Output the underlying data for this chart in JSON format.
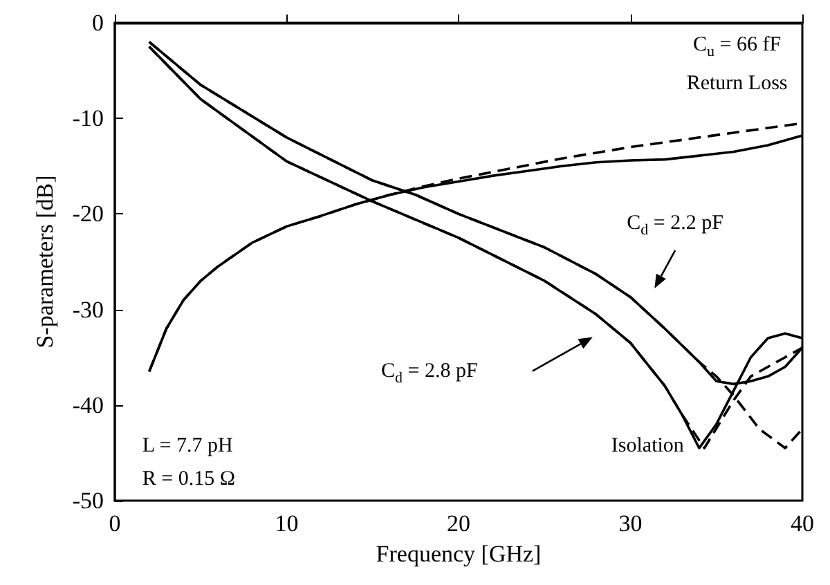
{
  "chart_data": {
    "type": "line",
    "xlabel": "Frequency [GHz]",
    "ylabel": "S-parameters [dB]",
    "xlim": [
      0,
      40
    ],
    "xticks": [
      0,
      10,
      20,
      30,
      40
    ],
    "ylim": [
      -50,
      0
    ],
    "yticks": [
      -50,
      -40,
      -30,
      -20,
      -10,
      0
    ],
    "grid": false,
    "marker": "none",
    "series": [
      {
        "color": "#000000",
        "line_style": "solid",
        "x": [
          2,
          3,
          4,
          5,
          6,
          8,
          10,
          12,
          14,
          16,
          18,
          20,
          22,
          24,
          26,
          28,
          30,
          32,
          34,
          36,
          38,
          40
        ],
        "values": [
          -36.5,
          -32,
          -29,
          -27,
          -25.5,
          -23,
          -21.3,
          -20.2,
          -19,
          -18,
          -17.2,
          -16.6,
          -16,
          -15.5,
          -15,
          -14.6,
          -14.4,
          -14.3,
          -13.9,
          -13.5,
          -12.8,
          -11.8
        ]
      },
      {
        "color": "#000000",
        "line_style": "dashed",
        "x": [
          2,
          3,
          4,
          5,
          6,
          8,
          10,
          12,
          14,
          16,
          18,
          20,
          22,
          24,
          26,
          28,
          30,
          32,
          34,
          36,
          38,
          40
        ],
        "values": [
          -36.5,
          -32,
          -29,
          -27,
          -25.5,
          -23,
          -21.3,
          -20.2,
          -19,
          -18,
          -17.1,
          -16.3,
          -15.6,
          -14.9,
          -14.2,
          -13.6,
          -13,
          -12.5,
          -12,
          -11.5,
          -11,
          -10.5
        ]
      },
      {
        "color": "#000000",
        "line_style": "solid",
        "x": [
          2,
          5,
          10,
          15,
          17.5,
          20,
          25,
          28,
          30,
          32,
          34,
          35,
          36,
          37,
          38,
          39,
          40
        ],
        "values": [
          -2,
          -6.5,
          -12,
          -16.5,
          -18,
          -20,
          -23.5,
          -26.3,
          -28.7,
          -32,
          -35.5,
          -37.5,
          -37.8,
          -37.5,
          -37,
          -36,
          -34
        ]
      },
      {
        "color": "#000000",
        "line_style": "dashed",
        "x": [
          2,
          5,
          10,
          15,
          17.5,
          20,
          25,
          28,
          30,
          32,
          34,
          35,
          36,
          37.5,
          39,
          40
        ],
        "values": [
          -2,
          -6.5,
          -12,
          -16.5,
          -18,
          -20,
          -23.5,
          -26.3,
          -28.7,
          -32,
          -35.5,
          -37,
          -39,
          -42.5,
          -44.5,
          -42.5
        ]
      },
      {
        "color": "#000000",
        "line_style": "solid",
        "x": [
          2,
          5,
          10,
          15,
          20,
          25,
          28,
          30,
          32,
          33,
          34,
          35,
          36,
          37,
          38,
          39,
          40
        ],
        "values": [
          -2.5,
          -8,
          -14.5,
          -18.7,
          -22.5,
          -27,
          -30.5,
          -33.5,
          -38,
          -41,
          -44.5,
          -42,
          -38.5,
          -35,
          -33,
          -32.5,
          -33
        ]
      },
      {
        "color": "#000000",
        "line_style": "dashed",
        "x": [
          2,
          5,
          10,
          15,
          20,
          25,
          28,
          30,
          32,
          33,
          34.3,
          36,
          37,
          38,
          39,
          40
        ],
        "values": [
          -2.5,
          -8,
          -14.5,
          -18.7,
          -22.5,
          -27,
          -30.5,
          -33.5,
          -38,
          -41,
          -44.5,
          -39.5,
          -37,
          -36,
          -35,
          -34
        ]
      }
    ],
    "annotations": [
      "C$_{u}$ = 66 fF",
      "Return Loss",
      "C$_{d}$ = 2.2 pF",
      "C$_{d}$ = 2.8 pF",
      "Isolation",
      "L = 7.7 pH",
      "R = 0.15 Ω"
    ]
  }
}
